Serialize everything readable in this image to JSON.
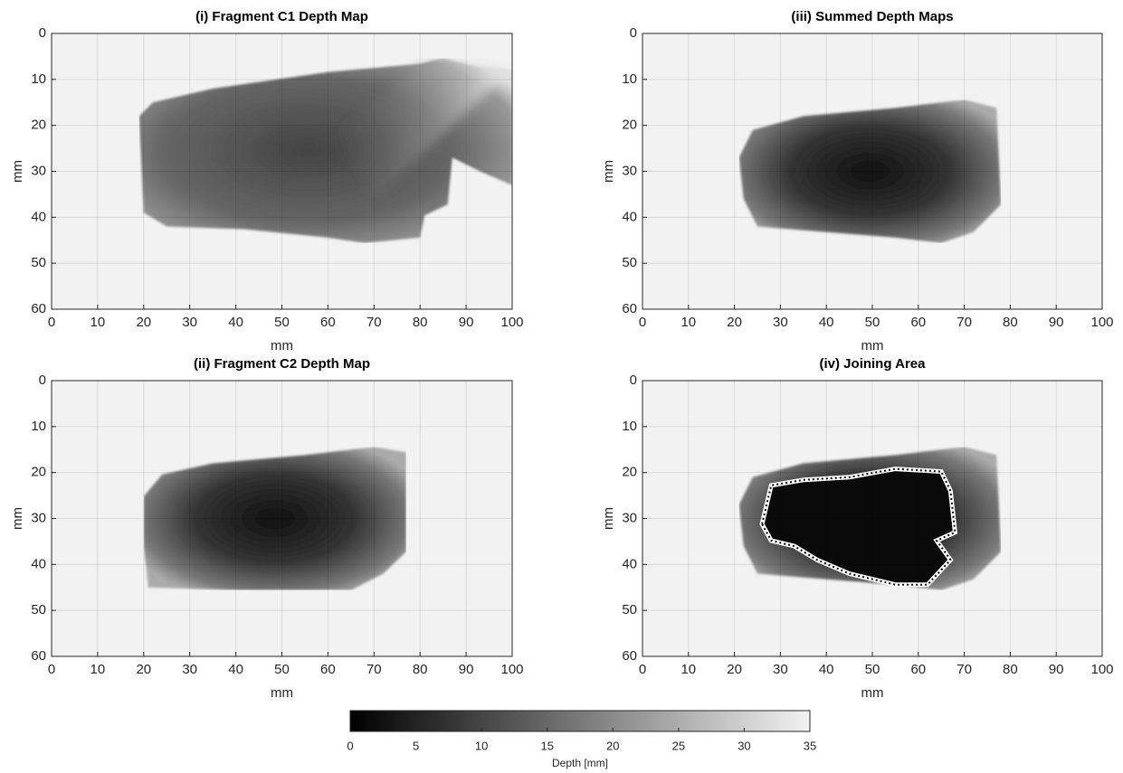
{
  "chart_data": [
    {
      "type": "image",
      "title": "(i) Fragment C1 Depth Map",
      "xlabel": "mm",
      "ylabel": "mm",
      "xlim": [
        0,
        100
      ],
      "ylim": [
        60,
        0
      ],
      "xticks": [
        0,
        10,
        20,
        30,
        40,
        50,
        60,
        70,
        80,
        90,
        100
      ],
      "yticks": [
        0,
        10,
        20,
        30,
        40,
        50,
        60
      ],
      "grid": true
    },
    {
      "type": "image",
      "title": "(iii) Summed Depth Maps",
      "xlabel": "mm",
      "ylabel": "mm",
      "xlim": [
        0,
        100
      ],
      "ylim": [
        60,
        0
      ],
      "xticks": [
        0,
        10,
        20,
        30,
        40,
        50,
        60,
        70,
        80,
        90,
        100
      ],
      "yticks": [
        0,
        10,
        20,
        30,
        40,
        50,
        60
      ],
      "grid": true
    },
    {
      "type": "image",
      "title": "(ii) Fragment C2 Depth Map",
      "xlabel": "mm",
      "ylabel": "mm",
      "xlim": [
        0,
        100
      ],
      "ylim": [
        60,
        0
      ],
      "xticks": [
        0,
        10,
        20,
        30,
        40,
        50,
        60,
        70,
        80,
        90,
        100
      ],
      "yticks": [
        0,
        10,
        20,
        30,
        40,
        50,
        60
      ],
      "grid": true
    },
    {
      "type": "image",
      "title": "(iv) Joining Area",
      "xlabel": "mm",
      "ylabel": "mm",
      "xlim": [
        0,
        100
      ],
      "ylim": [
        60,
        0
      ],
      "xticks": [
        0,
        10,
        20,
        30,
        40,
        50,
        60,
        70,
        80,
        90,
        100
      ],
      "yticks": [
        0,
        10,
        20,
        30,
        40,
        50,
        60
      ],
      "grid": true
    }
  ],
  "colorbar": {
    "label": "Depth [mm]",
    "lim": [
      0,
      35
    ],
    "ticks": [
      0,
      5,
      10,
      15,
      20,
      25,
      30,
      35
    ],
    "colors": [
      "#000000",
      "#f2f2f2"
    ]
  }
}
